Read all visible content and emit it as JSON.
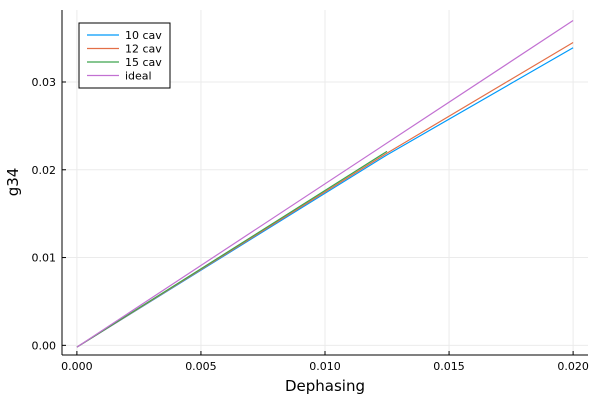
{
  "chart_data": {
    "type": "line",
    "title": "",
    "xlabel": "Dephasing",
    "ylabel": "g34",
    "xlim": [
      -0.0006,
      0.0206
    ],
    "ylim": [
      -0.0011,
      0.0382
    ],
    "xticks": [
      0.0,
      0.005,
      0.01,
      0.015,
      0.02
    ],
    "xtick_labels": [
      "0.000",
      "0.005",
      "0.010",
      "0.015",
      "0.020"
    ],
    "yticks": [
      0.0,
      0.01,
      0.02,
      0.03
    ],
    "ytick_labels": [
      "0.00",
      "0.01",
      "0.02",
      "0.03"
    ],
    "grid": true,
    "legend_position": "top-left",
    "series": [
      {
        "name": "10 cav",
        "color": "#009AFA",
        "x": [
          0.0,
          0.0125,
          0.02
        ],
        "y": [
          -0.0002,
          0.0217,
          0.0339
        ]
      },
      {
        "name": "12 cav",
        "color": "#E36F47",
        "x": [
          0.0,
          0.0125,
          0.02
        ],
        "y": [
          -0.0002,
          0.0219,
          0.0345
        ]
      },
      {
        "name": "15 cav",
        "color": "#3EA44E",
        "x": [
          0.0,
          0.0125
        ],
        "y": [
          -0.0002,
          0.0221
        ]
      },
      {
        "name": "ideal",
        "color": "#C271D2",
        "x": [
          0.0,
          0.02
        ],
        "y": [
          -0.0002,
          0.037
        ]
      }
    ]
  }
}
